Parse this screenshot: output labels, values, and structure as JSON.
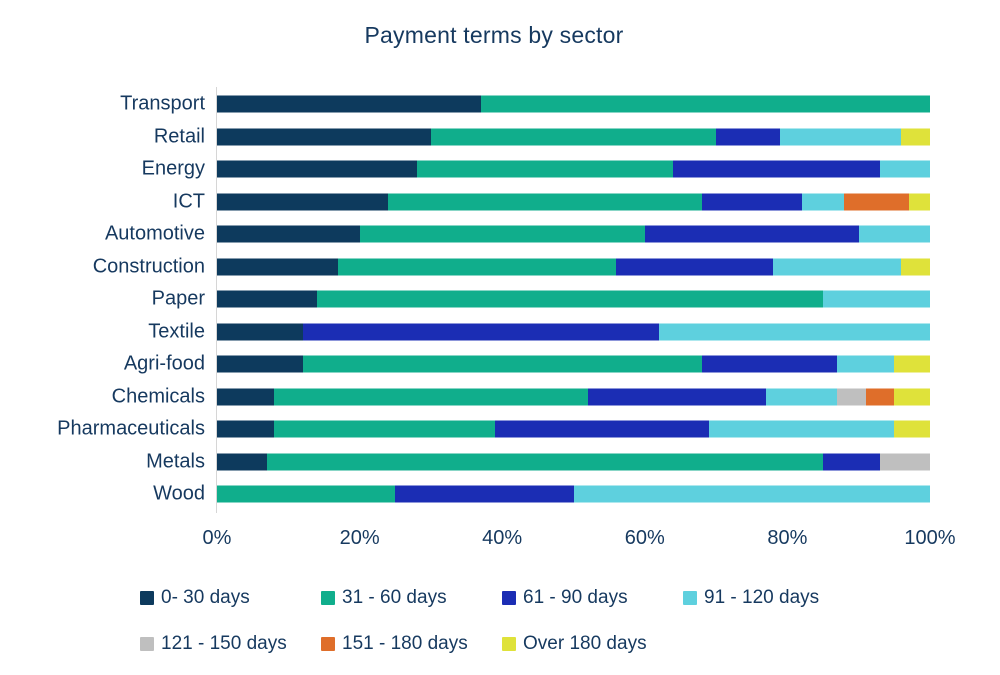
{
  "title": "Payment terms by sector",
  "colors": {
    "text_navy": "#16395f",
    "axis_line": "#d6d6d6"
  },
  "chart_data": {
    "type": "bar",
    "orientation": "horizontal",
    "stacked": true,
    "unit": "%",
    "title": "Payment terms by sector",
    "xlabel": "",
    "ylabel": "",
    "xlim": [
      0,
      100
    ],
    "x_tick_labels": [
      "0%",
      "20%",
      "40%",
      "60%",
      "80%",
      "100%"
    ],
    "legend_position": "bottom",
    "grid": false,
    "categories": [
      "Transport",
      "Retail",
      "Energy",
      "ICT",
      "Automotive",
      "Construction",
      "Paper",
      "Textile",
      "Agri-food",
      "Chemicals",
      "Pharmaceuticals",
      "Metals",
      "Wood"
    ],
    "series": [
      {
        "name": "0- 30 days",
        "color": "#0d3a5d",
        "values": [
          37,
          30,
          28,
          24,
          20,
          17,
          14,
          12,
          12,
          8,
          8,
          7,
          0
        ]
      },
      {
        "name": "31 - 60 days",
        "color": "#10ae8c",
        "values": [
          63,
          40,
          36,
          44,
          40,
          39,
          71,
          0,
          56,
          44,
          31,
          78,
          25
        ]
      },
      {
        "name": "61 - 90 days",
        "color": "#1b2db4",
        "values": [
          0,
          9,
          29,
          14,
          30,
          22,
          0,
          50,
          19,
          25,
          30,
          8,
          25
        ]
      },
      {
        "name": "91 - 120 days",
        "color": "#5ed0de",
        "values": [
          0,
          17,
          7,
          6,
          10,
          18,
          15,
          38,
          8,
          10,
          26,
          0,
          50
        ]
      },
      {
        "name": "121 - 150 days",
        "color": "#bfbfbf",
        "values": [
          0,
          0,
          0,
          0,
          0,
          0,
          0,
          0,
          0,
          4,
          0,
          7,
          0
        ]
      },
      {
        "name": "151 - 180 days",
        "color": "#df6e2a",
        "values": [
          0,
          0,
          0,
          9,
          0,
          0,
          0,
          0,
          0,
          4,
          0,
          0,
          0
        ]
      },
      {
        "name": "Over 180 days",
        "color": "#dfe23a",
        "values": [
          0,
          4,
          0,
          3,
          0,
          4,
          0,
          0,
          5,
          5,
          5,
          0,
          0
        ]
      }
    ],
    "legend_rows": [
      [
        0,
        1,
        2,
        3
      ],
      [
        4,
        5,
        6
      ]
    ]
  }
}
